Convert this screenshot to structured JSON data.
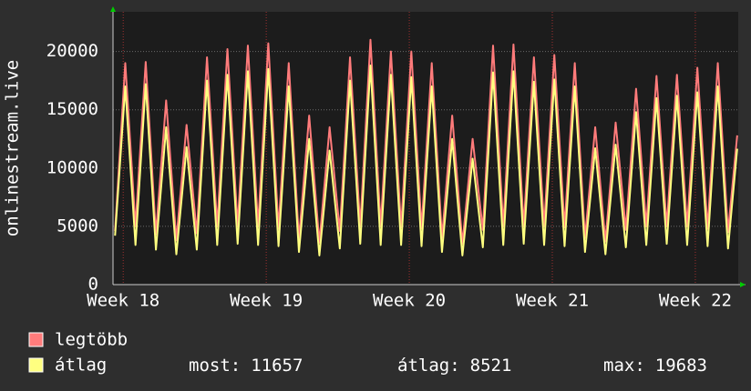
{
  "chart_data": {
    "type": "line",
    "y_label": "onlinestream.live",
    "x": [
      0.1,
      0.6,
      1.1,
      1.6,
      2.1,
      2.6,
      3.1,
      3.6,
      4.1,
      4.6,
      5.1,
      5.6,
      6.1,
      6.6,
      7.1,
      7.6,
      8.1,
      8.6,
      9.1,
      9.6,
      10.1,
      10.6,
      11.1,
      11.6,
      12.1,
      12.6,
      13.1,
      13.6,
      14.1,
      14.6,
      15.1,
      15.6,
      16.1,
      16.6,
      17.1,
      17.6,
      18.1,
      18.6,
      19.1,
      19.6,
      20.1,
      20.6,
      21.1,
      21.6,
      22.1,
      22.6,
      23.1,
      23.6,
      24.1,
      24.6,
      25.1,
      25.6,
      26.1,
      26.6,
      27.1,
      27.6,
      28.1,
      28.6,
      29.1,
      29.6,
      30.1,
      30.55
    ],
    "series": [
      {
        "name": "legtöbb",
        "color": "#ff7b7b",
        "values": [
          4600,
          19000,
          5000,
          19100,
          4300,
          15800,
          3800,
          13700,
          4400,
          19500,
          5000,
          20200,
          5000,
          20500,
          5000,
          20700,
          4800,
          19000,
          3900,
          14500,
          3600,
          13500,
          4600,
          19500,
          5000,
          21000,
          5000,
          20000,
          4900,
          20000,
          4800,
          19000,
          4000,
          14500,
          3500,
          12500,
          4700,
          20500,
          5000,
          20600,
          5000,
          19500,
          5000,
          19700,
          4900,
          19000,
          4000,
          13500,
          3700,
          13900,
          4700,
          16800,
          5000,
          17900,
          5000,
          18000,
          5000,
          18600,
          4800,
          19000,
          4500,
          12800
        ]
      },
      {
        "name": "átlag",
        "color": "#ffff80",
        "values": [
          4200,
          17000,
          3400,
          17200,
          3000,
          13500,
          2600,
          11800,
          3000,
          17500,
          3400,
          18000,
          3500,
          18300,
          3400,
          18500,
          3300,
          17000,
          2800,
          12500,
          2500,
          11500,
          3100,
          17500,
          3500,
          18800,
          3400,
          18000,
          3400,
          17800,
          3300,
          17000,
          2800,
          12500,
          2500,
          10800,
          3200,
          18200,
          3400,
          18300,
          3500,
          17400,
          3400,
          17600,
          3300,
          17000,
          2800,
          11700,
          2600,
          12000,
          3200,
          14800,
          3400,
          16000,
          3500,
          16200,
          3400,
          16500,
          3300,
          17000,
          3100,
          11657
        ]
      }
    ],
    "xlim": [
      0,
      30.6
    ],
    "xticks": [
      {
        "value": 0.5,
        "label": "Week 18"
      },
      {
        "value": 7.5,
        "label": "Week 19"
      },
      {
        "value": 14.5,
        "label": "Week 20"
      },
      {
        "value": 21.5,
        "label": "Week 21"
      },
      {
        "value": 28.5,
        "label": "Week 22"
      }
    ],
    "ylim": [
      0,
      23400
    ],
    "yticks": [
      0,
      5000,
      10000,
      15000,
      20000
    ],
    "grid": true,
    "stats": [
      {
        "label": "most:",
        "value": 11657
      },
      {
        "label": "átlag:",
        "value": 8521
      },
      {
        "label": "max:",
        "value": 19683
      }
    ]
  }
}
